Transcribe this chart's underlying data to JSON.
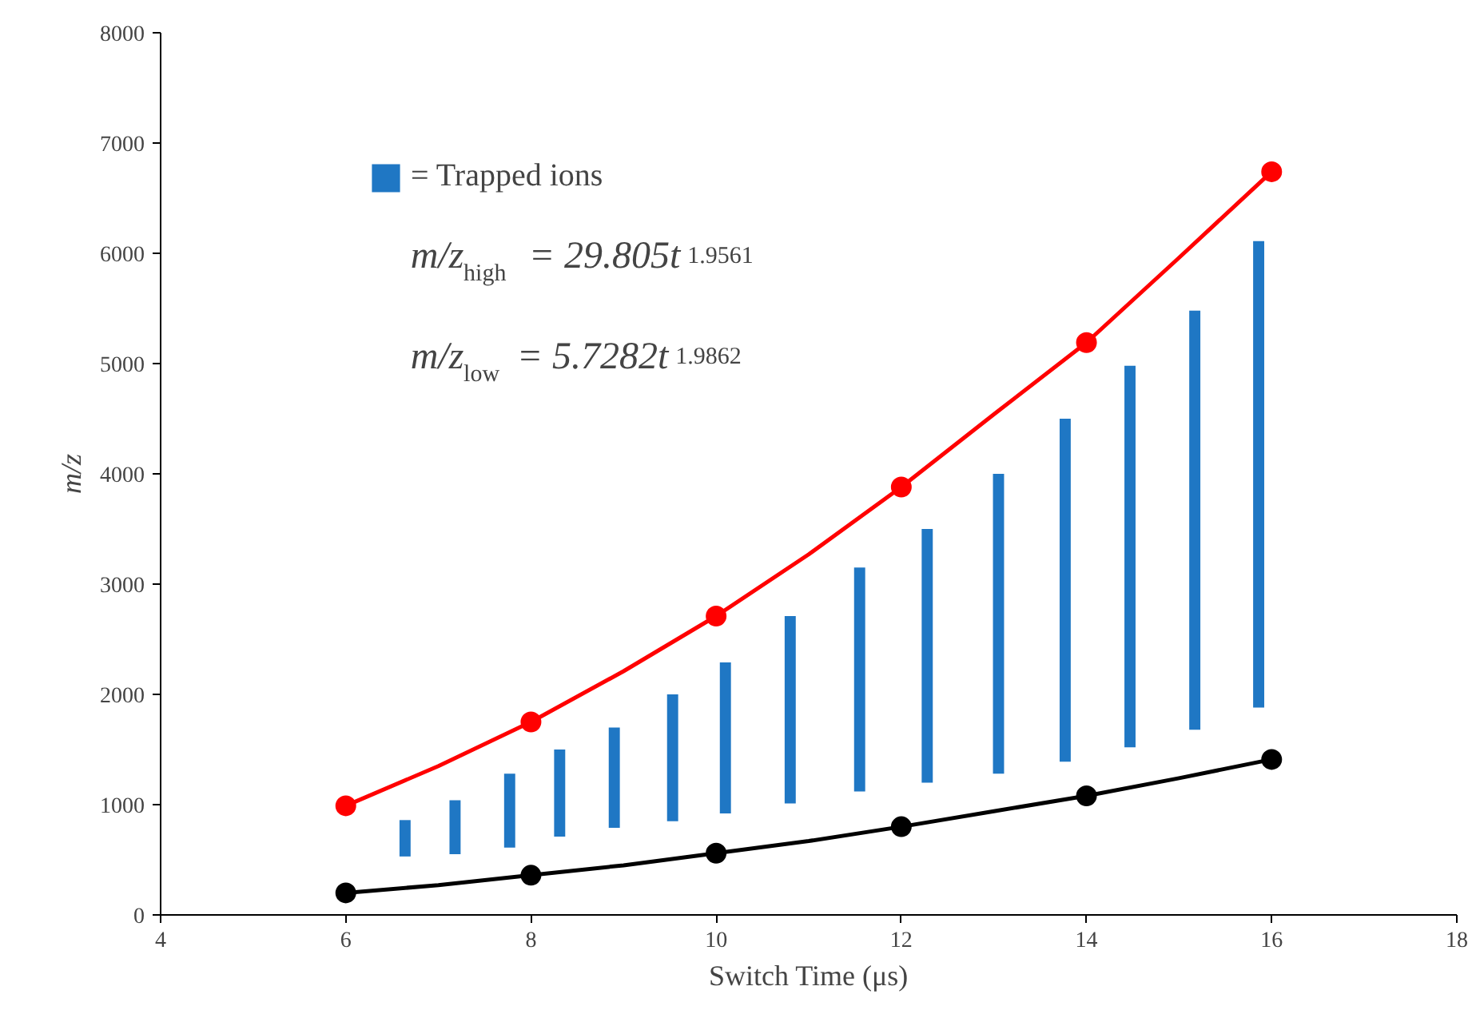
{
  "chart_data": {
    "type": "scatter",
    "xlabel": "Switch Time (μs)",
    "ylabel": "m/z",
    "xlim": [
      4,
      18
    ],
    "ylim": [
      0,
      8000
    ],
    "xticks": [
      4,
      6,
      8,
      10,
      12,
      14,
      16,
      18
    ],
    "yticks": [
      0,
      1000,
      2000,
      3000,
      4000,
      5000,
      6000,
      7000,
      8000
    ],
    "grid": false,
    "legend": "top left",
    "annotations": [
      "m/z$_{high}$ = 29.805t$^{1.9561}$",
      "m/z$_{low}$ = 5.7282t$^{1.9862}$"
    ],
    "series": [
      {
        "type": "bar",
        "name": "= Trapped ions",
        "color": "#1f77c4",
        "x": [
          6.64,
          7.18,
          7.77,
          8.31,
          8.9,
          9.53,
          10.1,
          10.8,
          11.55,
          12.28,
          13.05,
          13.77,
          14.47,
          15.17,
          15.86
        ],
        "base": [
          530,
          550,
          610,
          710,
          790,
          850,
          920,
          1010,
          1120,
          1200,
          1280,
          1390,
          1520,
          1680,
          1880
        ],
        "values": [
          330,
          490,
          670,
          790,
          910,
          1150,
          1370,
          1700,
          2030,
          2300,
          2720,
          3110,
          3460,
          3800,
          4230
        ]
      },
      {
        "type": "line",
        "color": "#ff0000",
        "x": [
          6,
          7,
          8,
          9,
          10,
          11,
          12,
          13,
          14,
          15,
          16
        ],
        "values": [
          990,
          1350,
          1750,
          2210,
          2710,
          3270,
          3880,
          4540,
          5190,
          5960,
          6740
        ]
      },
      {
        "type": "line",
        "color": "#000000",
        "x": [
          6,
          7,
          8,
          9,
          10,
          11,
          12,
          13,
          14,
          15,
          16
        ],
        "values": [
          200,
          270,
          360,
          450,
          560,
          670,
          800,
          940,
          1080,
          1240,
          1410
        ]
      },
      {
        "color": "#ff0000",
        "marker": "circle",
        "x": [
          6,
          8,
          10,
          12,
          14,
          16
        ],
        "values": [
          990,
          1750,
          2710,
          3880,
          5190,
          6740
        ]
      },
      {
        "color": "#000000",
        "marker": "circle",
        "x": [
          6,
          8,
          10,
          12,
          14,
          16
        ],
        "values": [
          200,
          360,
          560,
          800,
          1080,
          1410
        ]
      }
    ]
  }
}
